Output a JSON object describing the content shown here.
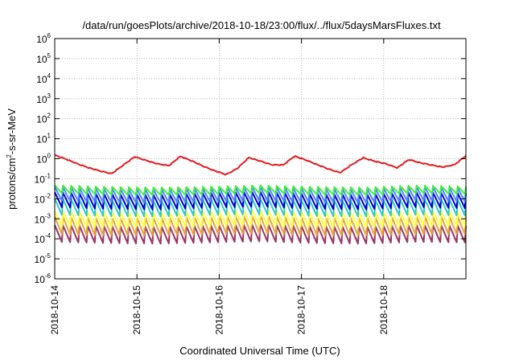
{
  "chart_data": {
    "type": "line",
    "title": "/data/run/goesPlots/archive/2018-10-18/23:00/flux/../flux/5daysMarsFluxes.txt",
    "xlabel": "Coordinated Universal Time (UTC)",
    "ylabel": {
      "prefix": "protons/cm",
      "sup": "2",
      "suffix": "-s-sr-MeV"
    },
    "y_scale": "log",
    "ylim": [
      1e-06,
      1000000.0
    ],
    "y_ticks": [
      {
        "base": "10",
        "exp": "-6"
      },
      {
        "base": "10",
        "exp": "-5"
      },
      {
        "base": "10",
        "exp": "-4"
      },
      {
        "base": "10",
        "exp": "-3"
      },
      {
        "base": "10",
        "exp": "-2"
      },
      {
        "base": "10",
        "exp": "-1"
      },
      {
        "base": "10",
        "exp": "0"
      },
      {
        "base": "10",
        "exp": "1"
      },
      {
        "base": "10",
        "exp": "2"
      },
      {
        "base": "10",
        "exp": "3"
      },
      {
        "base": "10",
        "exp": "4"
      },
      {
        "base": "10",
        "exp": "5"
      },
      {
        "base": "10",
        "exp": "6"
      }
    ],
    "x_ticks": [
      "2018-10-14",
      "2018-10-15",
      "2018-10-16",
      "2018-10-17",
      "2018-10-18"
    ],
    "xlim": [
      "2018-10-14",
      "2018-10-19"
    ],
    "grid": true,
    "legend": "none",
    "sawtooth_cycles_per_day": 10,
    "series": [
      {
        "color": "#e41a1c",
        "line_width": 2,
        "values": [
          1.5,
          0.95,
          0.55,
          0.35,
          0.24,
          0.18,
          0.48,
          1.25,
          0.82,
          0.55,
          0.45,
          1.3,
          0.78,
          0.42,
          0.25,
          0.16,
          0.33,
          1.15,
          0.75,
          0.5,
          0.48,
          1.35,
          0.85,
          0.5,
          0.3,
          0.2,
          0.5,
          1.1,
          0.75,
          0.55,
          0.35,
          0.9,
          0.62,
          0.48,
          0.38,
          0.5,
          1.4
        ],
        "sawtooth_ratio": 1.9
      },
      {
        "color": "#3cf13c",
        "line_width": 2,
        "values": [
          0.028,
          0.024,
          0.022,
          0.024,
          0.028,
          0.024,
          0.022,
          0.028,
          0.025
        ],
        "sawtooth_ratio": 2.8
      },
      {
        "color": "#4a86ff",
        "line_width": 2,
        "values": [
          0.016,
          0.013,
          0.012,
          0.014,
          0.016,
          0.013,
          0.012,
          0.016,
          0.014
        ],
        "sawtooth_ratio": 6.0
      },
      {
        "color": "#0000c8",
        "line_width": 2,
        "values": [
          0.008,
          0.0065,
          0.006,
          0.0075,
          0.0085,
          0.0065,
          0.006,
          0.008,
          0.007
        ],
        "sawtooth_ratio": 7.0
      },
      {
        "color": "#2ec8c8",
        "line_width": 2,
        "values": [
          0.0035,
          0.003,
          0.0028,
          0.0034,
          0.0036,
          0.003,
          0.0028,
          0.0035,
          0.0032
        ],
        "sawtooth_ratio": 8.0
      },
      {
        "color": "#ffff3c",
        "line_width": 2,
        "values": [
          0.0009,
          0.0008,
          0.0008,
          0.0009,
          0.001,
          0.0008,
          0.0008,
          0.0009,
          0.0009
        ],
        "sawtooth_ratio": 7.0
      },
      {
        "color": "#e6a23c",
        "line_width": 2,
        "values": [
          0.0004,
          0.00035,
          0.00035,
          0.0004,
          0.00045,
          0.00035,
          0.00035,
          0.0004,
          0.0004
        ],
        "sawtooth_ratio": 10.0
      },
      {
        "color": "#993366",
        "line_width": 2,
        "values": [
          0.00016,
          0.00014,
          0.00013,
          0.00015,
          0.00017,
          0.00014,
          0.00013,
          0.00016,
          0.00015
        ],
        "sawtooth_ratio": 9.0
      }
    ]
  }
}
